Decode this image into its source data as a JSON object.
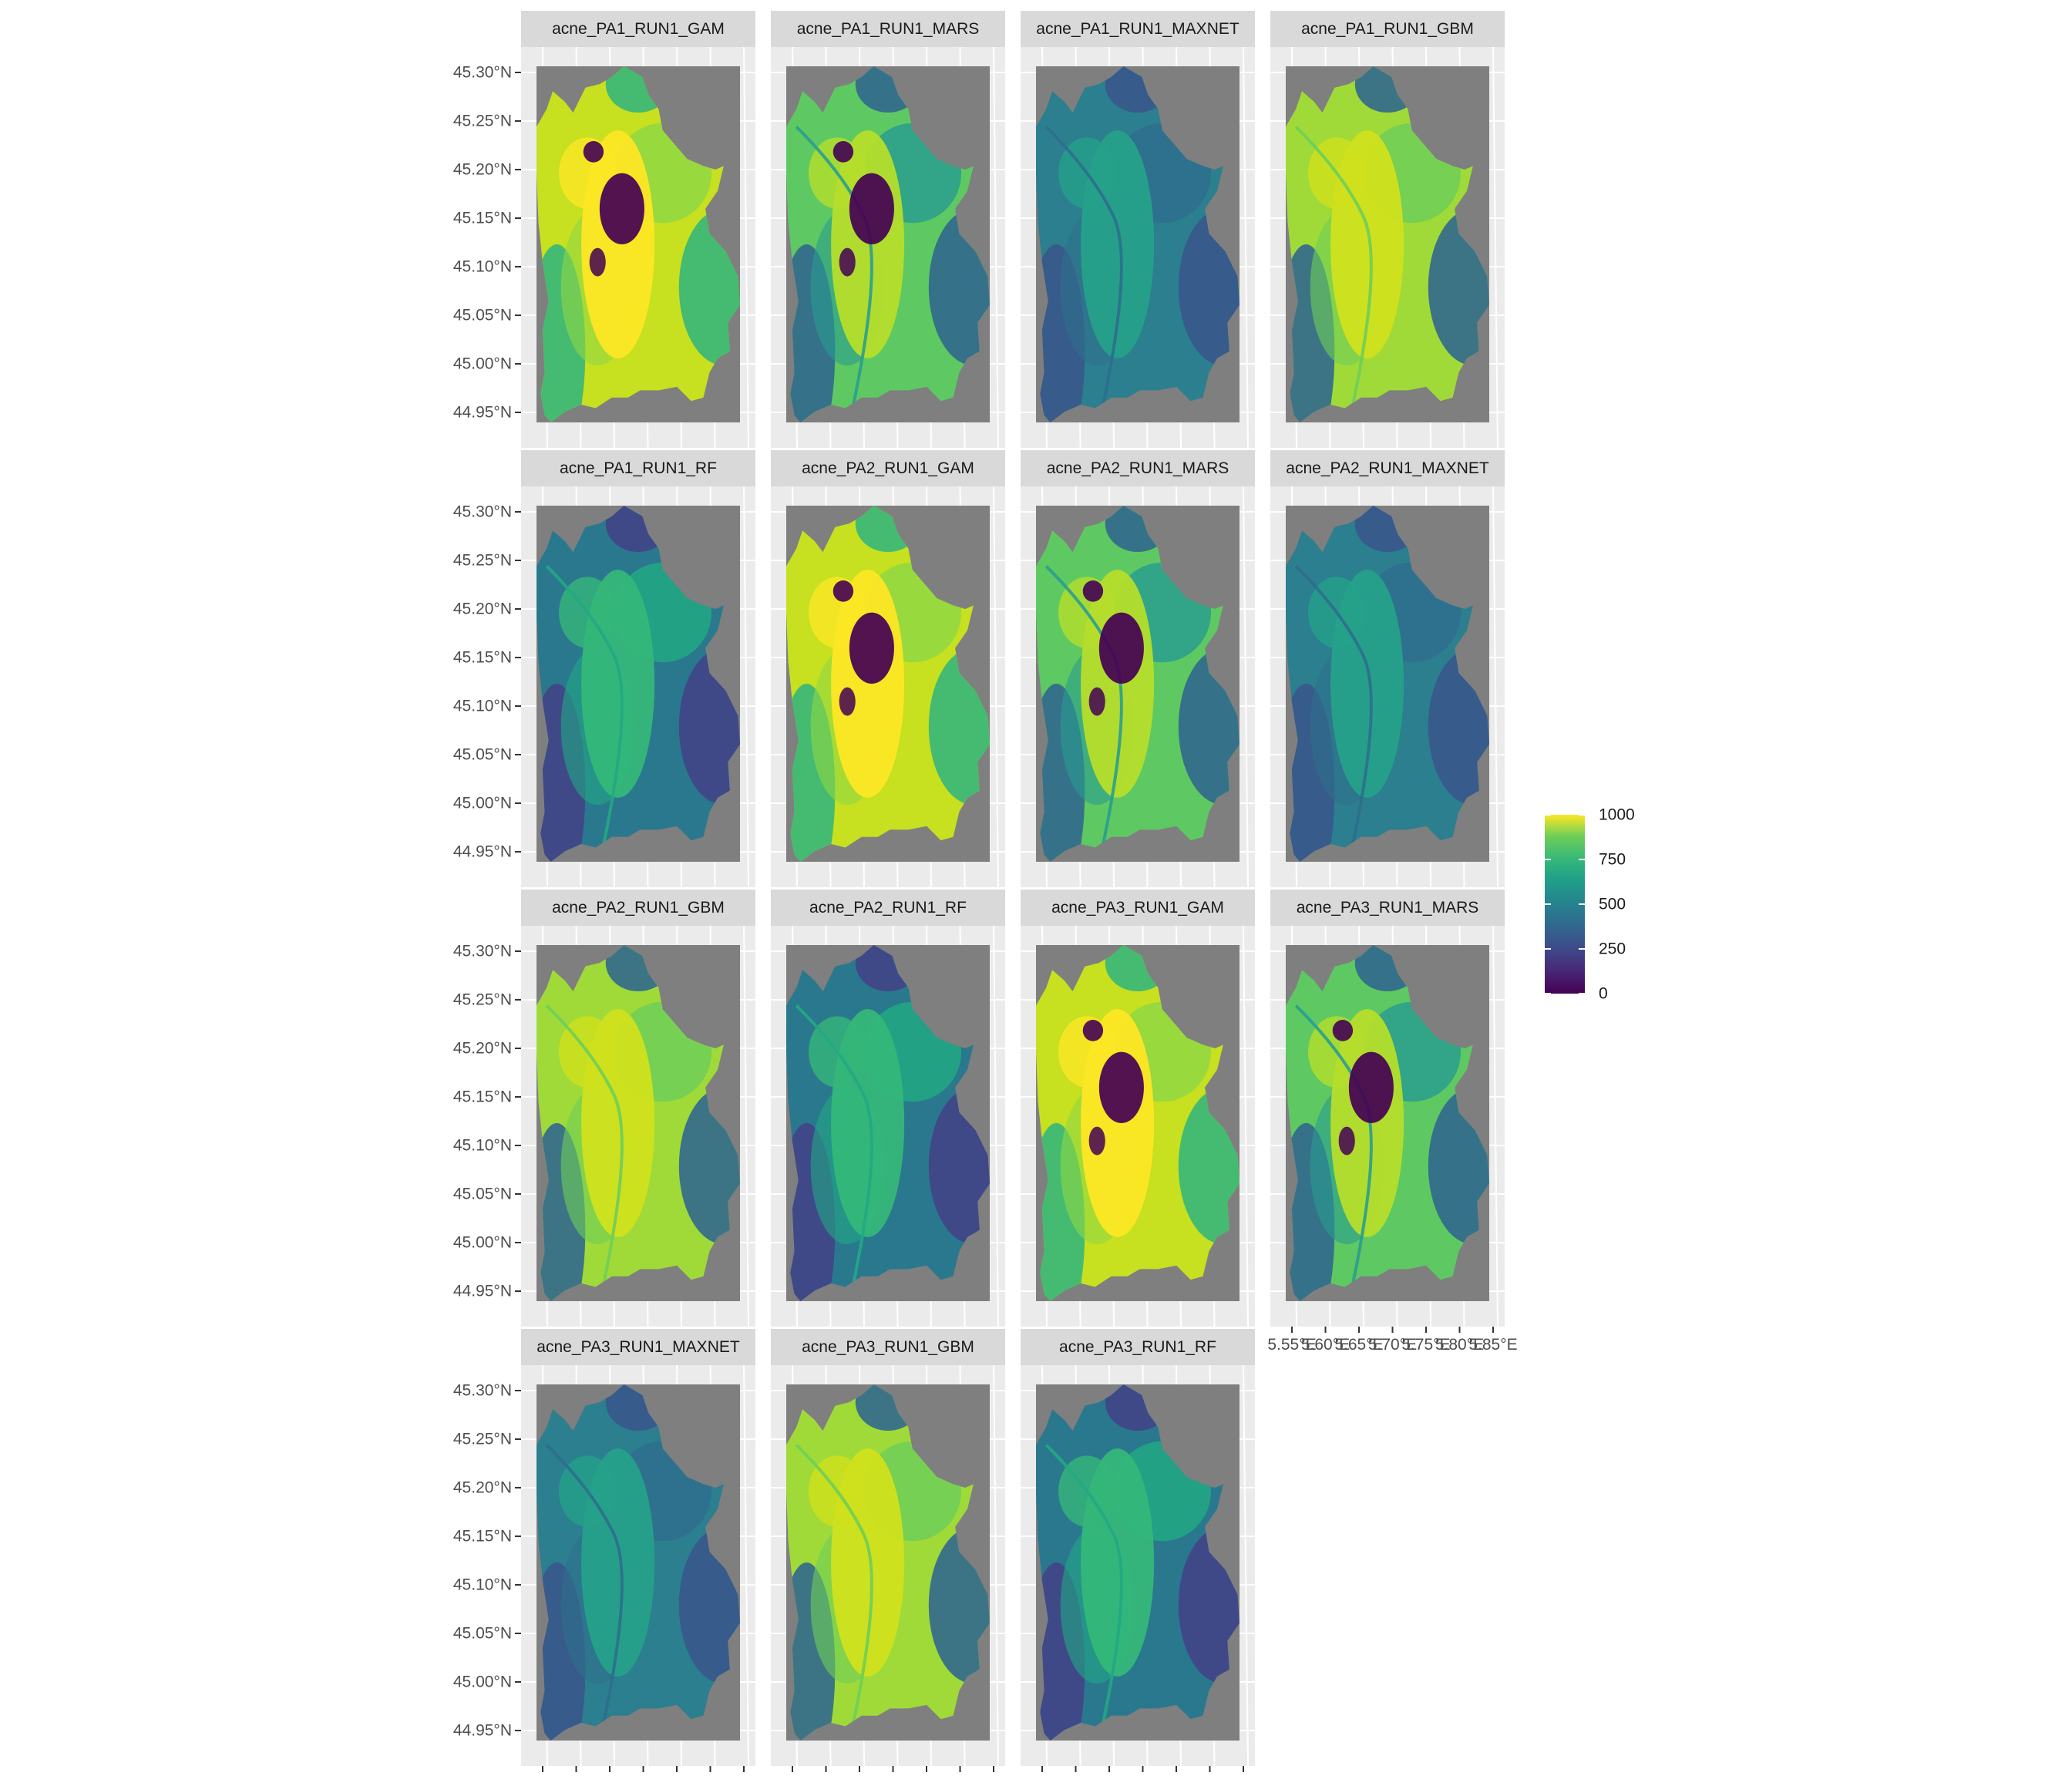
{
  "panels": [
    {
      "title": "acne_PA1_RUN1_GAM",
      "style": "gam"
    },
    {
      "title": "acne_PA1_RUN1_MARS",
      "style": "mars"
    },
    {
      "title": "acne_PA1_RUN1_MAXNET",
      "style": "maxnet"
    },
    {
      "title": "acne_PA1_RUN1_GBM",
      "style": "gbm"
    },
    {
      "title": "acne_PA1_RUN1_RF",
      "style": "rf"
    },
    {
      "title": "acne_PA2_RUN1_GAM",
      "style": "gam"
    },
    {
      "title": "acne_PA2_RUN1_MARS",
      "style": "mars"
    },
    {
      "title": "acne_PA2_RUN1_MAXNET",
      "style": "maxnet"
    },
    {
      "title": "acne_PA2_RUN1_GBM",
      "style": "gbm"
    },
    {
      "title": "acne_PA2_RUN1_RF",
      "style": "rf"
    },
    {
      "title": "acne_PA3_RUN1_GAM",
      "style": "gam"
    },
    {
      "title": "acne_PA3_RUN1_MARS",
      "style": "mars"
    },
    {
      "title": "acne_PA3_RUN1_MAXNET",
      "style": "maxnet"
    },
    {
      "title": "acne_PA3_RUN1_GBM",
      "style": "gbm"
    },
    {
      "title": "acne_PA3_RUN1_RF",
      "style": "rf"
    }
  ],
  "y_axis": {
    "tick_labels": [
      "45.30°N",
      "45.25°N",
      "45.20°N",
      "45.15°N",
      "45.10°N",
      "45.05°N",
      "45.00°N",
      "44.95°N"
    ],
    "tick_values": [
      45.3,
      45.25,
      45.2,
      45.15,
      45.1,
      45.05,
      45.0,
      44.95
    ]
  },
  "x_axis": {
    "tick_labels": [
      "5.55°E",
      "5.60°E",
      "5.65°E",
      "5.70°E",
      "5.75°E",
      "5.80°E",
      "5.85°E"
    ],
    "tick_values": [
      5.55,
      5.6,
      5.65,
      5.7,
      5.75,
      5.8,
      5.85
    ]
  },
  "legend": {
    "labels": [
      "1000",
      "750",
      "500",
      "250",
      "0"
    ],
    "values": [
      1000,
      750,
      500,
      250,
      0
    ],
    "range": [
      0,
      1000
    ],
    "colormap": "viridis"
  },
  "colors": {
    "panel_background": "#7f7f7f",
    "strip_background": "#d9d9d9",
    "plot_background": "#ebebeb",
    "grid": "#ffffff",
    "viridis_low": "#440154",
    "viridis_mid": "#21918c",
    "viridis_high": "#fde725"
  }
}
